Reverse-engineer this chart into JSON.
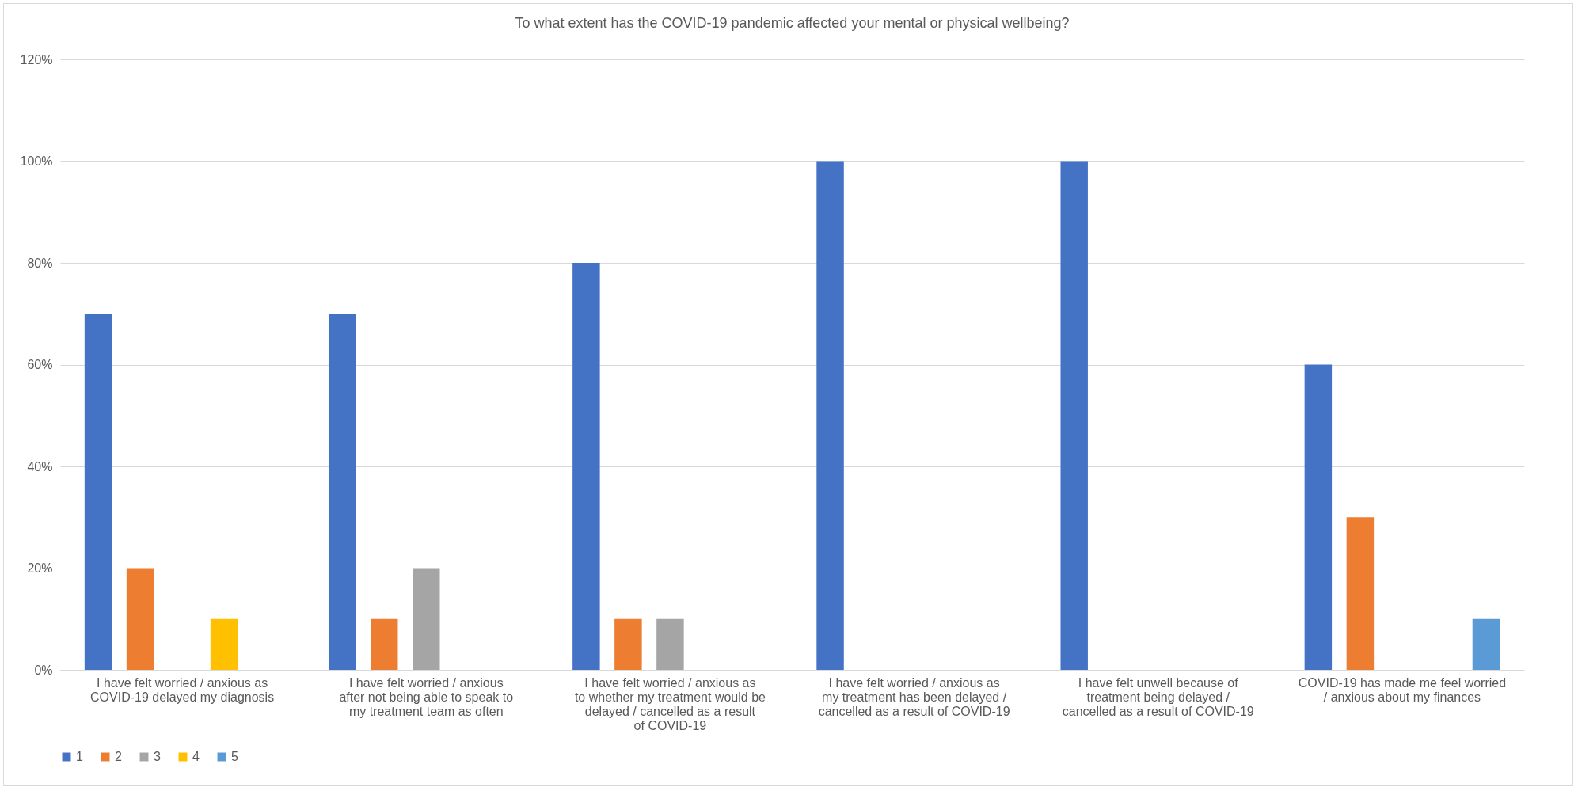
{
  "chart_data": {
    "type": "bar",
    "title": "To what extent has the COVID-19 pandemic affected your mental or physical wellbeing?",
    "categories": [
      "I have felt worried / anxious as COVID-19 delayed my diagnosis",
      "I have felt worried / anxious after not being able to speak to my treatment team as often",
      "I have felt worried / anxious as to whether my treatment would be delayed / cancelled as a result of COVID-19",
      "I have felt worried / anxious as my treatment has been delayed / cancelled as a result of COVID-19",
      "I have felt unwell because of treatment being delayed / cancelled as a result of COVID-19",
      "COVID-19 has made me feel worried / anxious about my finances"
    ],
    "series": [
      {
        "name": "1",
        "color": "#4472c4",
        "values": [
          70,
          70,
          80,
          100,
          100,
          60
        ]
      },
      {
        "name": "2",
        "color": "#ed7d31",
        "values": [
          20,
          10,
          10,
          0,
          0,
          30
        ]
      },
      {
        "name": "3",
        "color": "#a5a5a5",
        "values": [
          0,
          20,
          10,
          0,
          0,
          0
        ]
      },
      {
        "name": "4",
        "color": "#ffc000",
        "values": [
          10,
          0,
          0,
          0,
          0,
          0
        ]
      },
      {
        "name": "5",
        "color": "#5b9bd5",
        "values": [
          0,
          0,
          0,
          0,
          0,
          10
        ]
      }
    ],
    "ylim": [
      0,
      120
    ],
    "yticks": [
      {
        "value": 0,
        "label": "0%"
      },
      {
        "value": 20,
        "label": "20%"
      },
      {
        "value": 40,
        "label": "40%"
      },
      {
        "value": 60,
        "label": "60%"
      },
      {
        "value": 80,
        "label": "80%"
      },
      {
        "value": 100,
        "label": "100%"
      },
      {
        "value": 120,
        "label": "120%"
      }
    ],
    "grid": "y",
    "legend": "bottom"
  }
}
